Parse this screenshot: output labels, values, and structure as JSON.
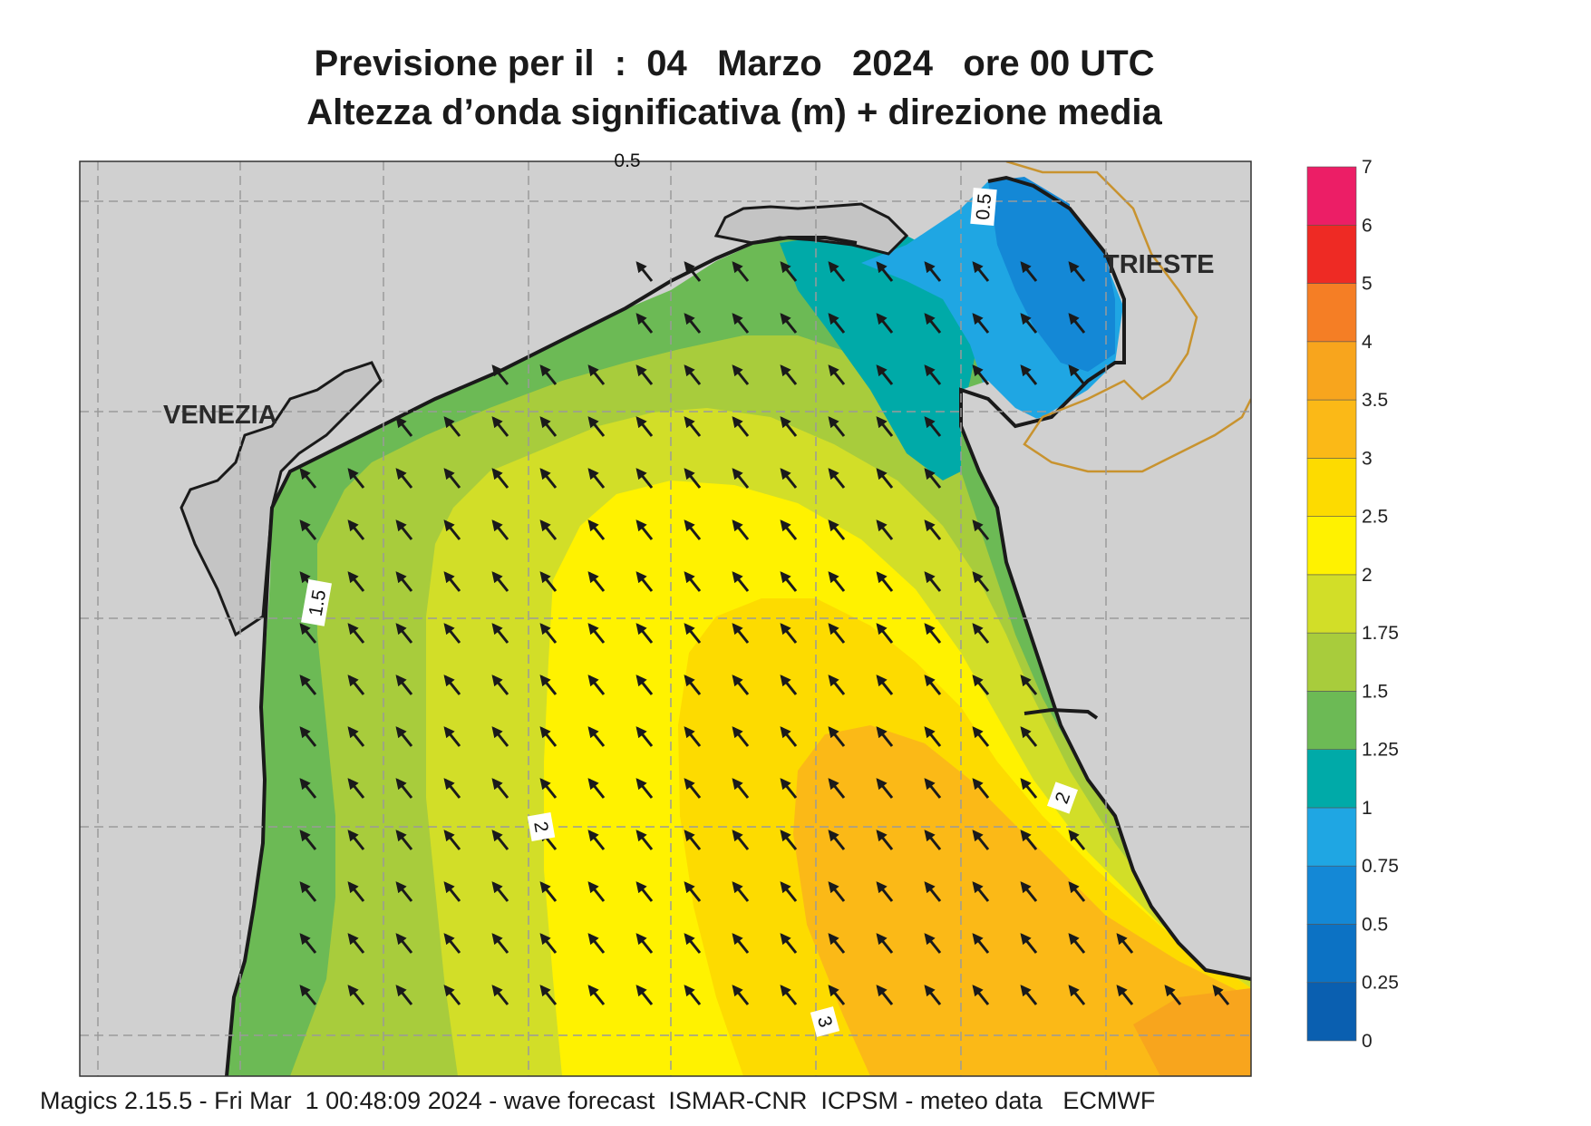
{
  "title": {
    "line1": "Previsione per il  :  04   Marzo   2024   ore 00 UTC",
    "line2": "Altezza d’onda significativa (m) + direzione media"
  },
  "footer": "Magics 2.15.5 - Fri Mar  1 00:48:09 2024 - wave forecast  ISMAR-CNR  ICPSM - meteo data   ECMWF",
  "places": [
    {
      "label": "VENEZIA"
    },
    {
      "label": "TRIESTE"
    }
  ],
  "contour_labels": [
    "1.5",
    "2",
    "2",
    "3",
    "0.5",
    "0.5"
  ],
  "colorbar": {
    "levels": [
      "0",
      "0.25",
      "0.5",
      "0.75",
      "1",
      "1.25",
      "1.5",
      "1.75",
      "2",
      "2.5",
      "3",
      "3.5",
      "4",
      "5",
      "6",
      "7"
    ],
    "colors": [
      "#0a5fb0",
      "#0c72c4",
      "#1488d6",
      "#1fa6e3",
      "#00aaa8",
      "#6cba55",
      "#a8cc3c",
      "#d2de28",
      "#fff200",
      "#fddb00",
      "#fbb917",
      "#f8a51d",
      "#f57e25",
      "#ee2a24",
      "#ec1e66"
    ]
  },
  "colors": {
    "land": "#d0d0d0",
    "coast": "#1a1a1a",
    "border": "#c8932f",
    "grid": "#9a9a9a",
    "arrow": "#1a1a1a"
  },
  "wave_direction": "north-west"
}
